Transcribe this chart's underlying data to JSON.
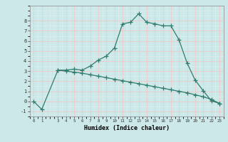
{
  "line1_x": [
    0,
    1,
    3,
    4,
    5,
    6,
    7,
    8,
    9,
    10,
    11,
    12,
    13,
    14,
    15,
    16,
    17,
    18,
    19,
    20,
    21,
    22,
    23
  ],
  "line1_y": [
    0.0,
    -0.8,
    3.1,
    3.1,
    3.2,
    3.1,
    3.5,
    4.1,
    4.5,
    5.3,
    7.7,
    7.85,
    8.7,
    7.85,
    7.7,
    7.5,
    7.5,
    6.1,
    3.8,
    2.1,
    1.05,
    0.05,
    -0.2
  ],
  "line2_x": [
    3,
    4,
    5,
    6,
    7,
    8,
    9,
    10,
    11,
    12,
    13,
    14,
    15,
    16,
    17,
    18,
    19,
    20,
    21,
    22,
    23
  ],
  "line2_y": [
    3.1,
    3.0,
    2.9,
    2.8,
    2.65,
    2.5,
    2.35,
    2.2,
    2.05,
    1.9,
    1.75,
    1.6,
    1.45,
    1.3,
    1.15,
    1.0,
    0.85,
    0.65,
    0.45,
    0.2,
    -0.2
  ],
  "line_color": "#2e7d6e",
  "bg_color": "#cde8e8",
  "grid_major_color": "#f0c8c8",
  "grid_minor_color": "#dff0f0",
  "xlabel": "Humidex (Indice chaleur)",
  "ylim": [
    -1.5,
    9.5
  ],
  "xlim": [
    -0.5,
    23.5
  ],
  "yticks": [
    -1,
    0,
    1,
    2,
    3,
    4,
    5,
    6,
    7,
    8
  ],
  "xticks": [
    0,
    1,
    3,
    4,
    5,
    6,
    7,
    8,
    9,
    10,
    11,
    12,
    13,
    14,
    15,
    16,
    17,
    18,
    19,
    20,
    21,
    22,
    23
  ]
}
